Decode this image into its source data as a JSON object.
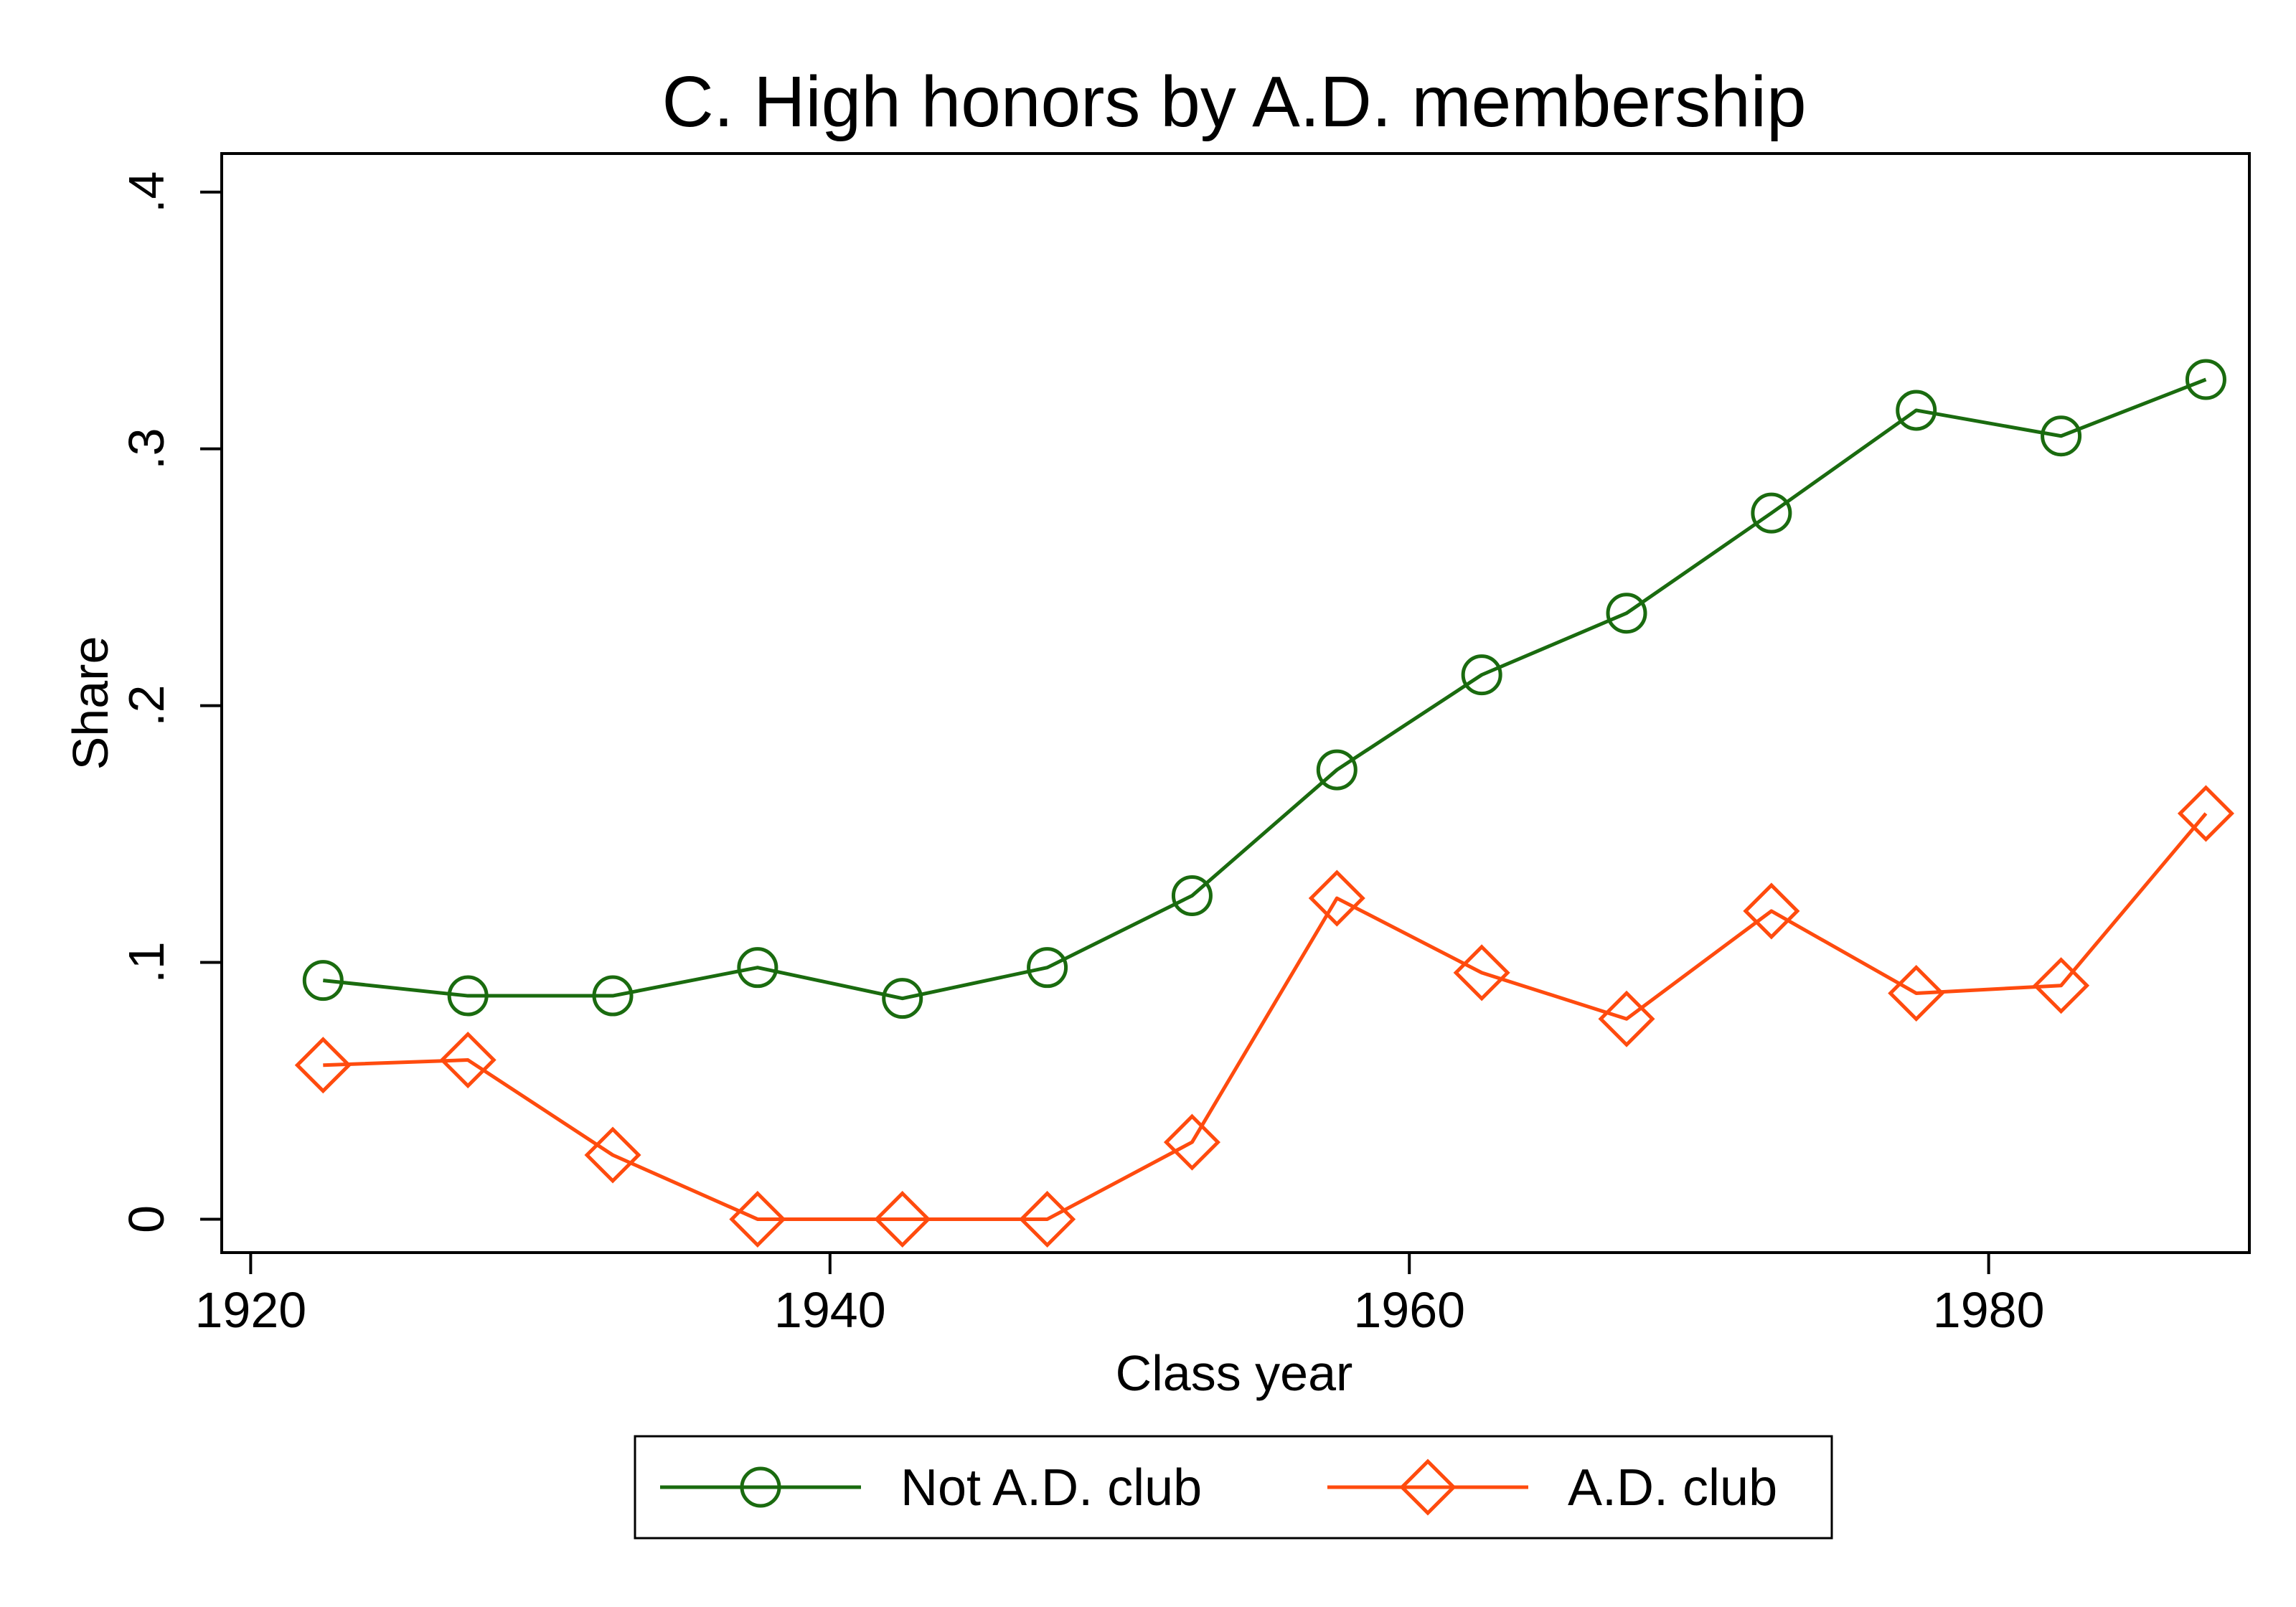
{
  "chart_data": {
    "type": "line",
    "title": "C. High honors by A.D. membership",
    "xlabel": "Class year",
    "ylabel": "Share",
    "xlim": [
      1919,
      1989
    ],
    "ylim": [
      -0.013,
      0.415
    ],
    "xticks": [
      1920,
      1940,
      1960,
      1980
    ],
    "xtick_labels": [
      "1920",
      "1940",
      "1960",
      "1980"
    ],
    "yticks": [
      0,
      0.1,
      0.2,
      0.3,
      0.4
    ],
    "ytick_labels": [
      "0",
      ".1",
      ".2",
      ".3",
      ".4"
    ],
    "grid": false,
    "legend_position": "bottom",
    "x": [
      1922.5,
      1927.5,
      1932.5,
      1937.5,
      1942.5,
      1947.5,
      1952.5,
      1957.5,
      1962.5,
      1967.5,
      1972.5,
      1977.5,
      1982.5,
      1987.5
    ],
    "series": [
      {
        "name": "Not A.D. club",
        "color": "#1a6b0f",
        "marker": "circle",
        "values": [
          0.093,
          0.087,
          0.087,
          0.098,
          0.086,
          0.098,
          0.126,
          0.175,
          0.212,
          0.236,
          0.275,
          0.315,
          0.305,
          0.327
        ]
      },
      {
        "name": "A.D. club",
        "color": "#ff4b0e",
        "marker": "diamond",
        "values": [
          0.06,
          0.062,
          0.025,
          0.0,
          0.0,
          0.0,
          0.03,
          0.125,
          0.096,
          0.078,
          0.12,
          0.088,
          0.091,
          0.158
        ]
      }
    ]
  }
}
